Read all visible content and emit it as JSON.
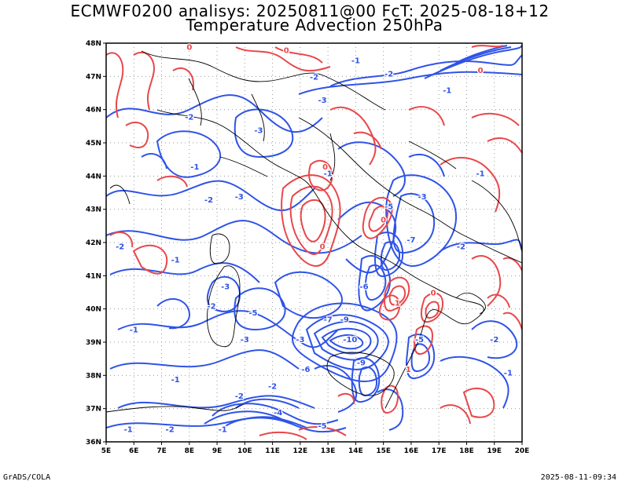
{
  "header": {
    "title_line1": "ECMWF0200 analisys: 20250811@00 FcT: 2025-08-18+12",
    "title_line2": "Temperature Advection 250hPa"
  },
  "footer": {
    "software": "GrADS/COLA",
    "timestamp": "2025-08-11-09:34"
  },
  "map": {
    "lon_range": [
      5,
      20
    ],
    "lat_range": [
      36,
      48
    ],
    "lon_ticks": [
      "5E",
      "6E",
      "7E",
      "8E",
      "9E",
      "10E",
      "11E",
      "12E",
      "13E",
      "14E",
      "15E",
      "16E",
      "17E",
      "18E",
      "19E",
      "20E"
    ],
    "lat_ticks": [
      "36N",
      "37N",
      "38N",
      "39N",
      "40N",
      "41N",
      "42N",
      "43N",
      "44N",
      "45N",
      "46N",
      "47N",
      "48N"
    ],
    "grid": true,
    "colors": {
      "positive_contour": "#e8474a",
      "negative_contour": "#2f53e8",
      "coastline": "#000000",
      "grid": "#9a9a9a"
    },
    "contour_labels": [
      {
        "text": "-2",
        "lon": 5.5,
        "lat": 41.8,
        "sign": "neg"
      },
      {
        "text": "-1",
        "lon": 7.5,
        "lat": 41.4,
        "sign": "neg"
      },
      {
        "text": "-2",
        "lon": 8.8,
        "lat": 40.0,
        "sign": "neg"
      },
      {
        "text": "-1",
        "lon": 6.0,
        "lat": 39.3,
        "sign": "neg"
      },
      {
        "text": "-3",
        "lon": 9.3,
        "lat": 40.6,
        "sign": "neg"
      },
      {
        "text": "-5",
        "lon": 10.3,
        "lat": 39.8,
        "sign": "neg"
      },
      {
        "text": "-3",
        "lon": 10.0,
        "lat": 39.0,
        "sign": "neg"
      },
      {
        "text": "-3",
        "lon": 12.0,
        "lat": 39.0,
        "sign": "neg"
      },
      {
        "text": "-6",
        "lon": 12.2,
        "lat": 38.1,
        "sign": "neg"
      },
      {
        "text": "-7",
        "lon": 13.0,
        "lat": 39.6,
        "sign": "neg"
      },
      {
        "text": "-9",
        "lon": 13.6,
        "lat": 39.6,
        "sign": "neg"
      },
      {
        "text": "-10",
        "lon": 13.8,
        "lat": 39.0,
        "sign": "neg"
      },
      {
        "text": "-6",
        "lon": 14.3,
        "lat": 40.6,
        "sign": "neg"
      },
      {
        "text": "-9",
        "lon": 14.2,
        "lat": 38.3,
        "sign": "neg"
      },
      {
        "text": "-5",
        "lon": 16.3,
        "lat": 39.0,
        "sign": "neg"
      },
      {
        "text": "-7",
        "lon": 16.0,
        "lat": 42.0,
        "sign": "neg"
      },
      {
        "text": "-5",
        "lon": 15.2,
        "lat": 43.0,
        "sign": "neg"
      },
      {
        "text": "-3",
        "lon": 16.4,
        "lat": 43.3,
        "sign": "neg"
      },
      {
        "text": "-2",
        "lon": 17.8,
        "lat": 41.8,
        "sign": "neg"
      },
      {
        "text": "-1",
        "lon": 18.5,
        "lat": 44.0,
        "sign": "neg"
      },
      {
        "text": "-2",
        "lon": 8.7,
        "lat": 43.2,
        "sign": "neg"
      },
      {
        "text": "-3",
        "lon": 9.8,
        "lat": 43.3,
        "sign": "neg"
      },
      {
        "text": "-1",
        "lon": 8.2,
        "lat": 44.2,
        "sign": "neg"
      },
      {
        "text": "-2",
        "lon": 8.0,
        "lat": 45.7,
        "sign": "neg"
      },
      {
        "text": "-3",
        "lon": 10.5,
        "lat": 45.3,
        "sign": "neg"
      },
      {
        "text": "-2",
        "lon": 12.5,
        "lat": 46.9,
        "sign": "neg"
      },
      {
        "text": "-1",
        "lon": 14.0,
        "lat": 47.4,
        "sign": "neg"
      },
      {
        "text": "-2",
        "lon": 15.2,
        "lat": 47.0,
        "sign": "neg"
      },
      {
        "text": "-1",
        "lon": 17.3,
        "lat": 46.5,
        "sign": "neg"
      },
      {
        "text": "-3",
        "lon": 12.8,
        "lat": 46.2,
        "sign": "neg"
      },
      {
        "text": "-1",
        "lon": 13.0,
        "lat": 44.0,
        "sign": "neg"
      },
      {
        "text": "-2",
        "lon": 9.8,
        "lat": 37.3,
        "sign": "neg"
      },
      {
        "text": "-1",
        "lon": 9.2,
        "lat": 36.3,
        "sign": "neg"
      },
      {
        "text": "-2",
        "lon": 7.3,
        "lat": 36.3,
        "sign": "neg"
      },
      {
        "text": "-1",
        "lon": 5.8,
        "lat": 36.3,
        "sign": "neg"
      },
      {
        "text": "-2",
        "lon": 11.0,
        "lat": 37.6,
        "sign": "neg"
      },
      {
        "text": "-4",
        "lon": 11.2,
        "lat": 36.8,
        "sign": "neg"
      },
      {
        "text": "-5",
        "lon": 12.8,
        "lat": 36.4,
        "sign": "neg"
      },
      {
        "text": "-1",
        "lon": 7.5,
        "lat": 37.8,
        "sign": "neg"
      },
      {
        "text": "-2",
        "lon": 19.0,
        "lat": 39.0,
        "sign": "neg"
      },
      {
        "text": "-1",
        "lon": 19.5,
        "lat": 38.0,
        "sign": "neg"
      },
      {
        "text": "0",
        "lon": 11.5,
        "lat": 47.7,
        "sign": "pos"
      },
      {
        "text": "0",
        "lon": 8.0,
        "lat": 47.8,
        "sign": "pos"
      },
      {
        "text": "0",
        "lon": 12.9,
        "lat": 44.2,
        "sign": "pos"
      },
      {
        "text": "0",
        "lon": 12.8,
        "lat": 41.8,
        "sign": "pos"
      },
      {
        "text": "1",
        "lon": 15.9,
        "lat": 38.1,
        "sign": "pos"
      },
      {
        "text": "0",
        "lon": 18.5,
        "lat": 47.1,
        "sign": "pos"
      },
      {
        "text": "0",
        "lon": 15.0,
        "lat": 42.6,
        "sign": "pos"
      },
      {
        "text": "1",
        "lon": 15.5,
        "lat": 40.1,
        "sign": "pos"
      },
      {
        "text": "0",
        "lon": 16.8,
        "lat": 40.4,
        "sign": "pos"
      }
    ]
  }
}
